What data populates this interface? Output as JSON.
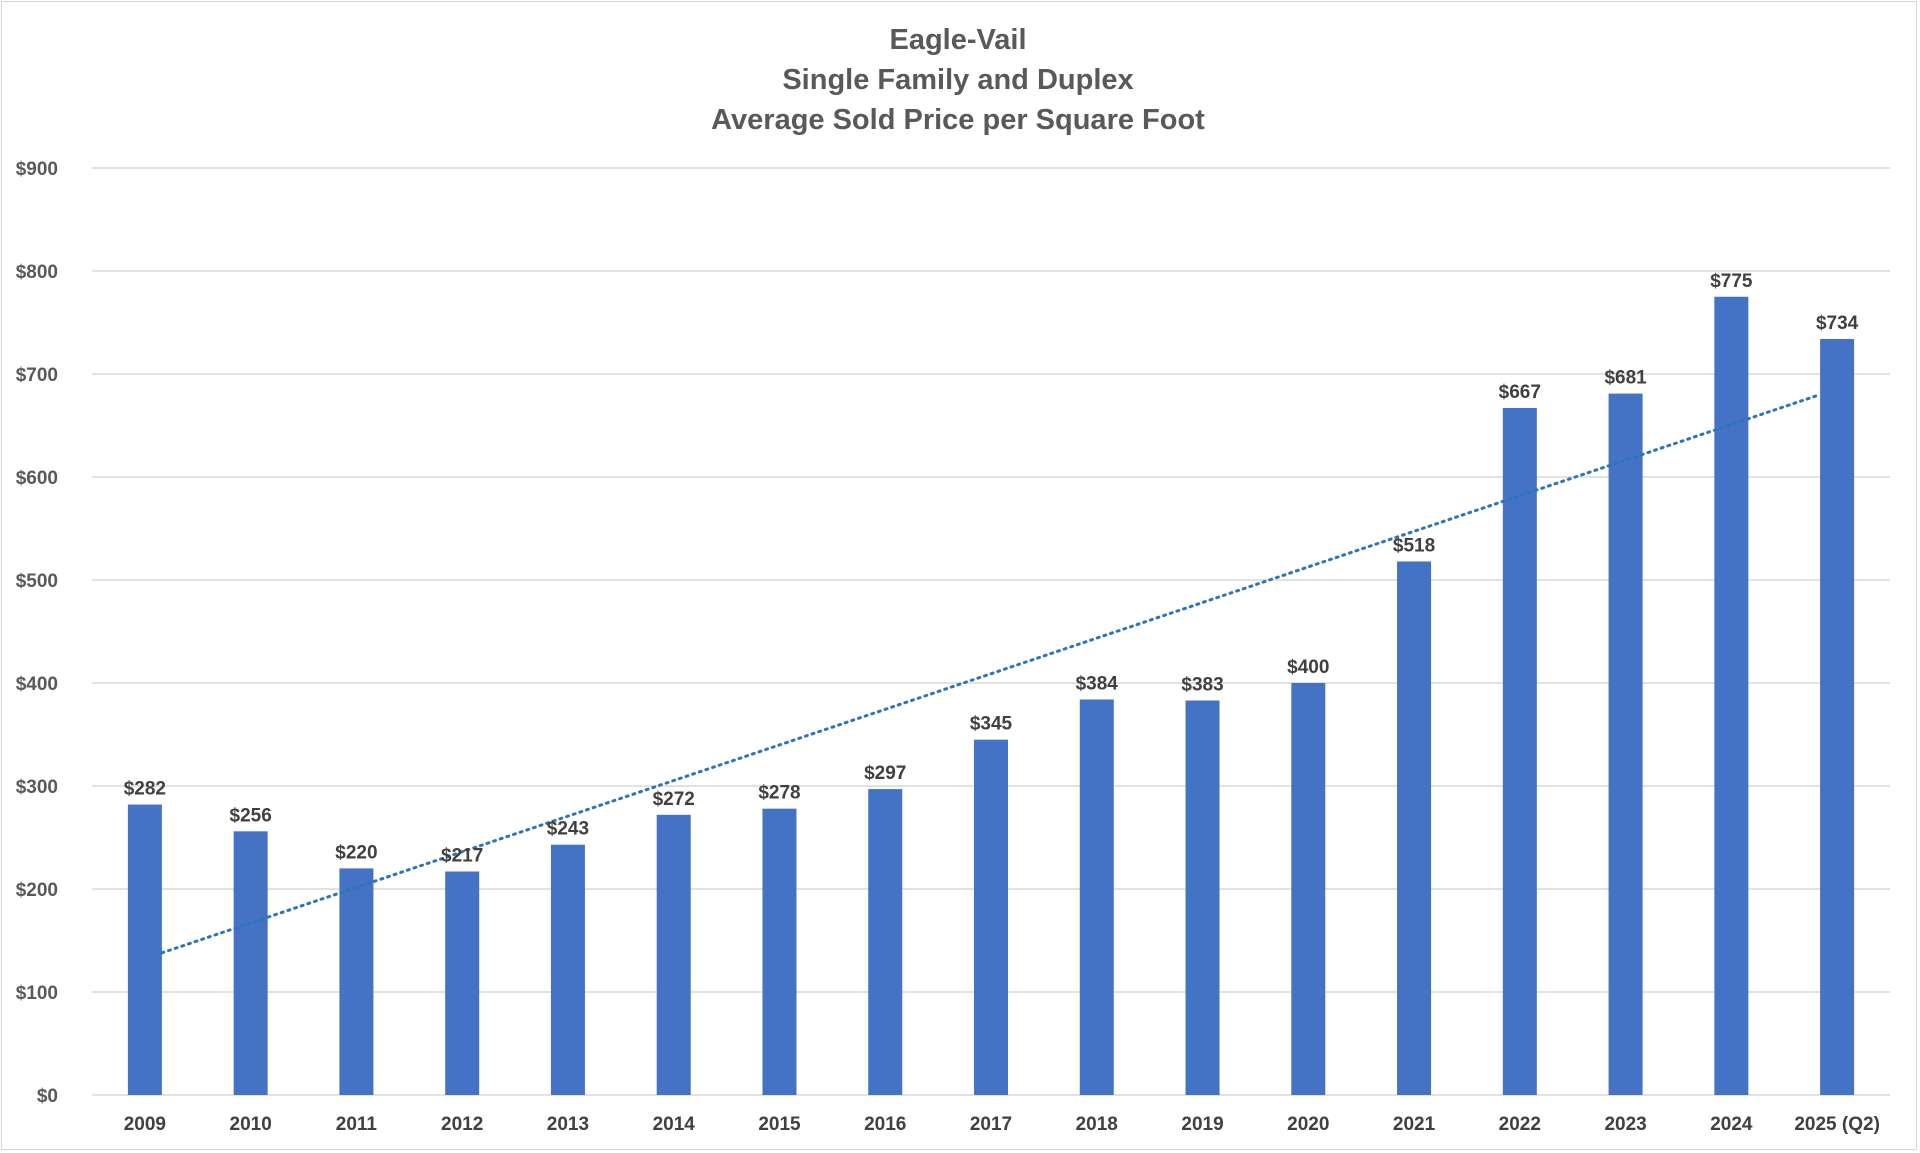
{
  "chart_data": {
    "type": "bar",
    "title": "Eagle-Vail",
    "subtitle": [
      "Single Family and Duplex",
      "Average Sold Price per Square Foot"
    ],
    "xlabel": "",
    "ylabel": "",
    "ylim": [
      0,
      900
    ],
    "ytick_values": [
      0,
      100,
      200,
      300,
      400,
      500,
      600,
      700,
      800,
      900
    ],
    "ytick_labels": [
      "$0",
      "$100",
      "$200",
      "$300",
      "$400",
      "$500",
      "$600",
      "$700",
      "$800",
      "$900"
    ],
    "categories": [
      "2009",
      "2010",
      "2011",
      "2012",
      "2013",
      "2014",
      "2015",
      "2016",
      "2017",
      "2018",
      "2019",
      "2020",
      "2021",
      "2022",
      "2023",
      "2024",
      "2025 (Q2)"
    ],
    "values": [
      282,
      256,
      220,
      217,
      243,
      272,
      278,
      297,
      345,
      384,
      383,
      400,
      518,
      667,
      681,
      775,
      734
    ],
    "data_labels": [
      "$282",
      "$256",
      "$220",
      "$217",
      "$243",
      "$272",
      "$278",
      "$297",
      "$345",
      "$384",
      "$383",
      "$400",
      "$518",
      "$667",
      "$681",
      "$775",
      "$734"
    ],
    "trendline": {
      "type": "linear",
      "style": "dotted",
      "start": 138,
      "end": 680
    },
    "grid": true,
    "legend": "none",
    "colors": {
      "bar": "#4472C4",
      "trend": "#2E75B6",
      "grid": "#d9d9d9"
    }
  }
}
